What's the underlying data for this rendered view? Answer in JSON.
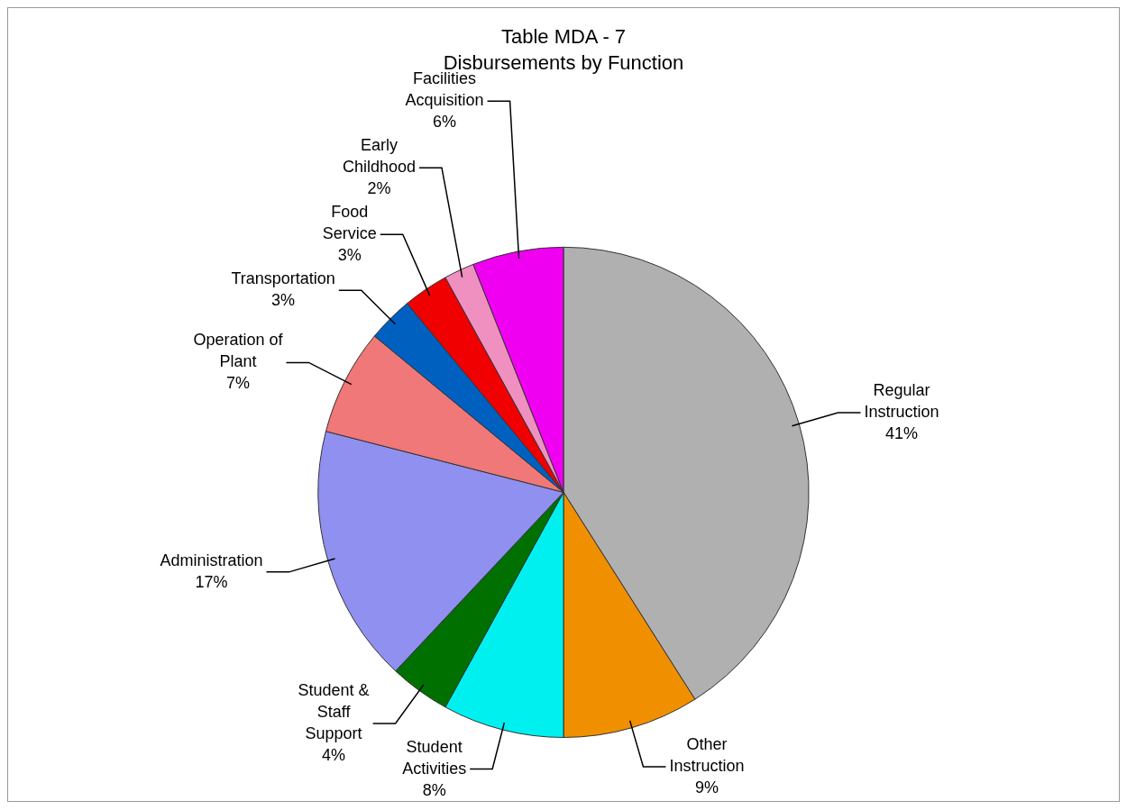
{
  "chart_data": {
    "type": "pie",
    "title": "Table MDA - 7",
    "subtitle": "Disbursements by Function",
    "categories": [
      "Regular Instruction",
      "Other Instruction",
      "Student Activities",
      "Student & Staff Support",
      "Administration",
      "Operation of Plant",
      "Transportation",
      "Food Service",
      "Early Childhood",
      "Facilities Acquisition"
    ],
    "values": [
      41,
      9,
      8,
      4,
      17,
      7,
      3,
      3,
      2,
      6
    ],
    "value_labels": [
      "41%",
      "9%",
      "8%",
      "4%",
      "17%",
      "7%",
      "3%",
      "3%",
      "2%",
      "6%"
    ],
    "colors": [
      "#b0b0b0",
      "#f09000",
      "#00f0f0",
      "#007000",
      "#9090f0",
      "#f07878",
      "#0060c0",
      "#f00000",
      "#f090c0",
      "#f000f0"
    ],
    "legend": false
  }
}
